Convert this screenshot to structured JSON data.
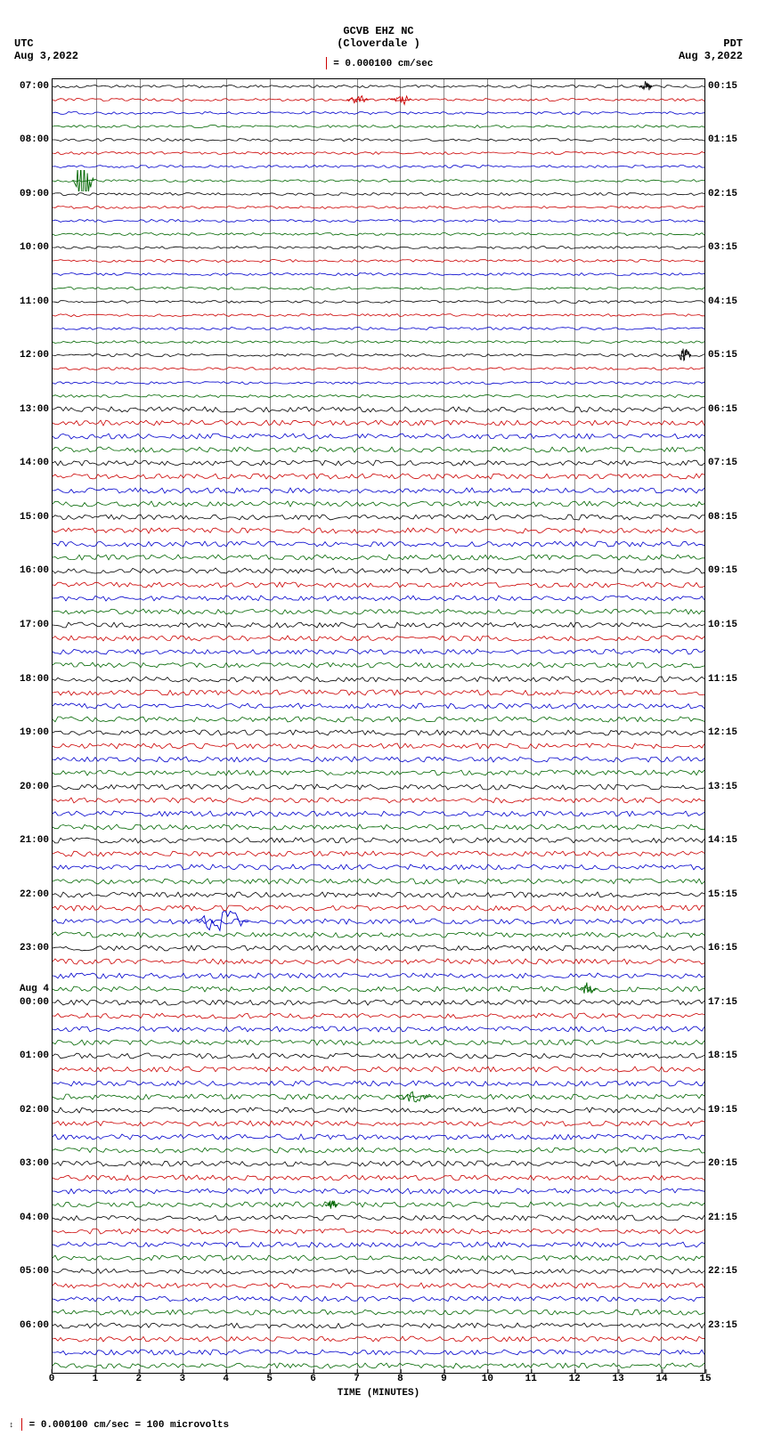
{
  "header": {
    "title1": "GCVB EHZ NC",
    "title2": "(Cloverdale )",
    "scale_label": "= 0.000100 cm/sec",
    "tz_left": "UTC",
    "tz_right": "PDT",
    "date_left": "Aug 3,2022",
    "date_right": "Aug 3,2022"
  },
  "plot": {
    "background": "#ffffff",
    "border_color": "#000000",
    "grid_color": "#888888",
    "x_minutes": 15,
    "xticks": [
      "0",
      "1",
      "2",
      "3",
      "4",
      "5",
      "6",
      "7",
      "8",
      "9",
      "10",
      "11",
      "12",
      "13",
      "14",
      "15"
    ],
    "xlabel": "TIME (MINUTES)",
    "trace_colors": [
      "#000000",
      "#cc0000",
      "#0000cc",
      "#006600"
    ],
    "noise_height_low": 1.5,
    "noise_height_high": 3.0,
    "noise_switch_row": 24,
    "total_rows": 96,
    "label_fontsize": 11,
    "left_labels": [
      {
        "row": 0,
        "text": "07:00"
      },
      {
        "row": 4,
        "text": "08:00"
      },
      {
        "row": 8,
        "text": "09:00"
      },
      {
        "row": 12,
        "text": "10:00"
      },
      {
        "row": 16,
        "text": "11:00"
      },
      {
        "row": 20,
        "text": "12:00"
      },
      {
        "row": 24,
        "text": "13:00"
      },
      {
        "row": 28,
        "text": "14:00"
      },
      {
        "row": 32,
        "text": "15:00"
      },
      {
        "row": 36,
        "text": "16:00"
      },
      {
        "row": 40,
        "text": "17:00"
      },
      {
        "row": 44,
        "text": "18:00"
      },
      {
        "row": 48,
        "text": "19:00"
      },
      {
        "row": 52,
        "text": "20:00"
      },
      {
        "row": 56,
        "text": "21:00"
      },
      {
        "row": 60,
        "text": "22:00"
      },
      {
        "row": 64,
        "text": "23:00"
      },
      {
        "row": 67,
        "text": "Aug 4"
      },
      {
        "row": 68,
        "text": "00:00"
      },
      {
        "row": 72,
        "text": "01:00"
      },
      {
        "row": 76,
        "text": "02:00"
      },
      {
        "row": 80,
        "text": "03:00"
      },
      {
        "row": 84,
        "text": "04:00"
      },
      {
        "row": 88,
        "text": "05:00"
      },
      {
        "row": 92,
        "text": "06:00"
      }
    ],
    "right_labels": [
      {
        "row": 0,
        "text": "00:15"
      },
      {
        "row": 4,
        "text": "01:15"
      },
      {
        "row": 8,
        "text": "02:15"
      },
      {
        "row": 12,
        "text": "03:15"
      },
      {
        "row": 16,
        "text": "04:15"
      },
      {
        "row": 20,
        "text": "05:15"
      },
      {
        "row": 24,
        "text": "06:15"
      },
      {
        "row": 28,
        "text": "07:15"
      },
      {
        "row": 32,
        "text": "08:15"
      },
      {
        "row": 36,
        "text": "09:15"
      },
      {
        "row": 40,
        "text": "10:15"
      },
      {
        "row": 44,
        "text": "11:15"
      },
      {
        "row": 48,
        "text": "12:15"
      },
      {
        "row": 52,
        "text": "13:15"
      },
      {
        "row": 56,
        "text": "14:15"
      },
      {
        "row": 60,
        "text": "15:15"
      },
      {
        "row": 64,
        "text": "16:15"
      },
      {
        "row": 68,
        "text": "17:15"
      },
      {
        "row": 72,
        "text": "18:15"
      },
      {
        "row": 76,
        "text": "19:15"
      },
      {
        "row": 80,
        "text": "20:15"
      },
      {
        "row": 84,
        "text": "21:15"
      },
      {
        "row": 88,
        "text": "22:15"
      },
      {
        "row": 92,
        "text": "23:15"
      }
    ],
    "events": [
      {
        "row": 1,
        "minute": 7.0,
        "amp": 6,
        "width": 0.25
      },
      {
        "row": 1,
        "minute": 8.0,
        "amp": 6,
        "width": 0.25
      },
      {
        "row": 0,
        "minute": 13.6,
        "amp": 8,
        "width": 0.15
      },
      {
        "row": 7,
        "minute": 0.7,
        "amp": 20,
        "width": 0.25
      },
      {
        "row": 20,
        "minute": 14.5,
        "amp": 8,
        "width": 0.15
      },
      {
        "row": 62,
        "minute": 3.9,
        "amp": 14,
        "width": 0.6
      },
      {
        "row": 67,
        "minute": 12.3,
        "amp": 8,
        "width": 0.2
      },
      {
        "row": 75,
        "minute": 8.3,
        "amp": 6,
        "width": 0.4
      },
      {
        "row": 83,
        "minute": 6.4,
        "amp": 6,
        "width": 0.15
      }
    ]
  },
  "footer": {
    "text": "= 0.000100 cm/sec =    100 microvolts"
  }
}
